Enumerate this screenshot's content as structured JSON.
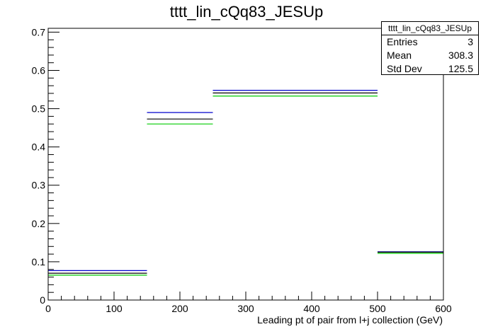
{
  "chart_data": {
    "type": "bar",
    "title": "tttt_lin_cQq83_JESUp",
    "xlabel": "Leading pt of pair from l+j collection (GeV)",
    "ylabel": "",
    "xlim": [
      0,
      600
    ],
    "ylim": [
      0,
      0.71
    ],
    "x_ticks": [
      0,
      100,
      200,
      300,
      400,
      500,
      600
    ],
    "y_ticks": [
      0,
      0.1,
      0.2,
      0.3,
      0.4,
      0.5,
      0.6,
      0.7
    ],
    "bins": [
      [
        0,
        150
      ],
      [
        150,
        250
      ],
      [
        250,
        500
      ],
      [
        500,
        600
      ]
    ],
    "series": [
      {
        "color": "#0000cc",
        "values": [
          0.077,
          0.49,
          0.548,
          0.126
        ]
      },
      {
        "color": "#000000",
        "values": [
          0.07,
          0.473,
          0.541,
          0.125
        ]
      },
      {
        "color": "#00cc00",
        "values": [
          0.065,
          0.46,
          0.533,
          0.122
        ]
      }
    ],
    "grid": false,
    "legend": "none",
    "stats_box": {
      "title": "tttt_lin_cQq83_JESUp",
      "rows": [
        {
          "label": "Entries",
          "value": "3"
        },
        {
          "label": "Mean",
          "value": "308.3"
        },
        {
          "label": "Std Dev",
          "value": "125.5"
        }
      ]
    }
  }
}
